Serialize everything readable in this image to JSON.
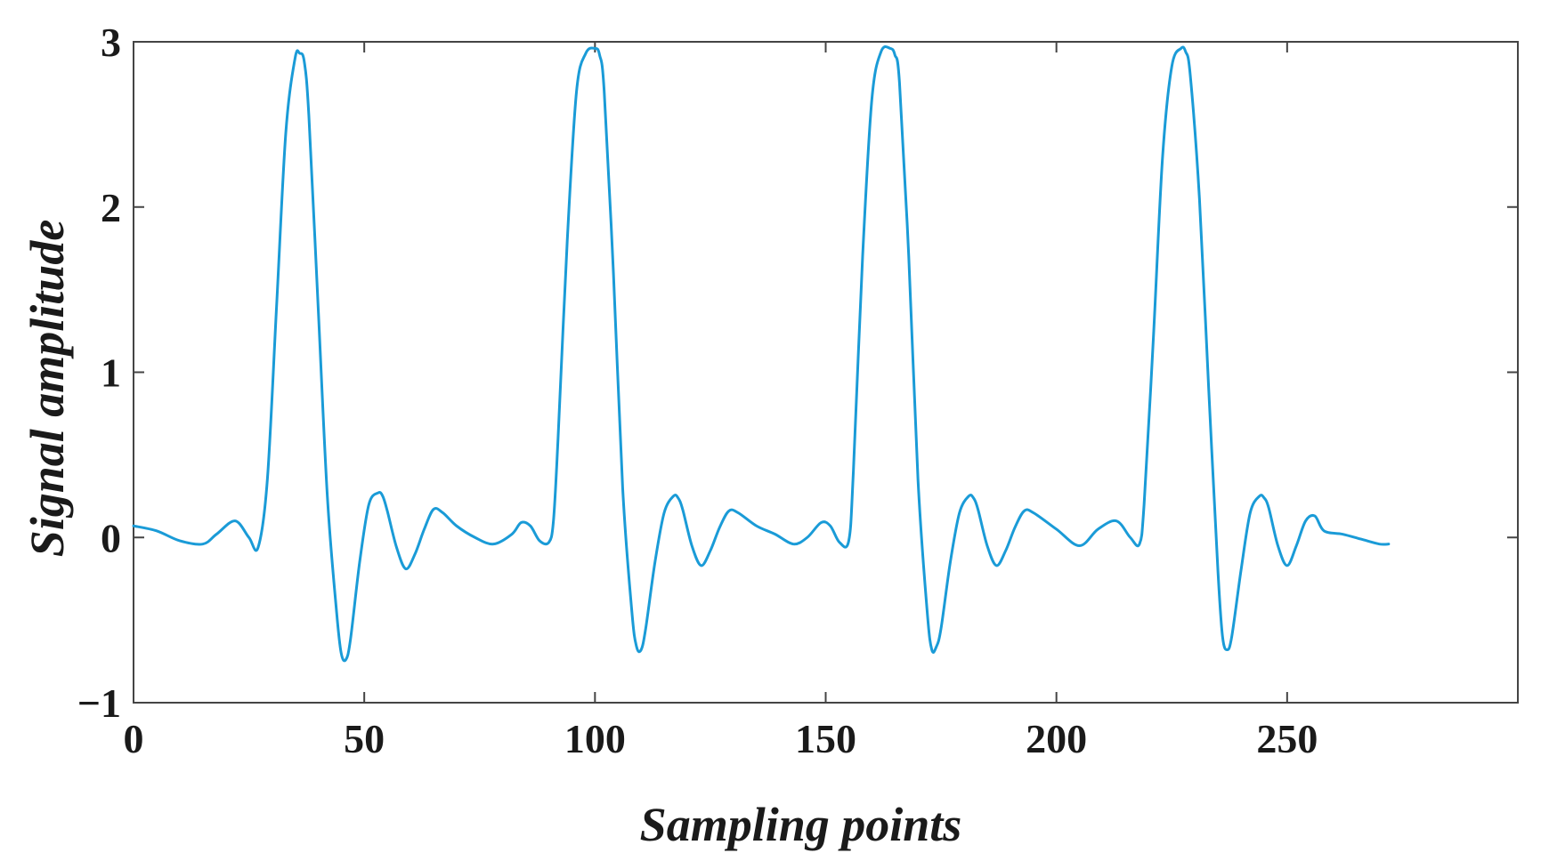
{
  "chart_data": {
    "type": "line",
    "title": "",
    "xlabel": "Sampling points",
    "ylabel": "Signal amplitude",
    "xlim": [
      0,
      300
    ],
    "ylim": [
      -1,
      3
    ],
    "xticks": [
      0,
      50,
      100,
      150,
      200,
      250
    ],
    "yticks": [
      -1,
      0,
      1,
      2,
      3
    ],
    "xtick_labels": [
      "0",
      "50",
      "100",
      "150",
      "200",
      "250"
    ],
    "ytick_labels": [
      "−1",
      "0",
      "1",
      "2",
      "3"
    ],
    "grid": false,
    "line_color": "#1a9bd7",
    "series": [
      {
        "x": [
          0,
          5,
          10,
          15,
          18,
          22,
          25,
          27,
          29,
          31,
          33,
          35,
          36,
          37,
          38,
          40,
          42,
          44,
          45,
          46,
          47,
          49,
          51,
          53,
          54,
          55,
          57,
          59,
          61,
          63,
          65,
          67,
          70,
          74,
          78,
          82,
          84,
          86,
          88,
          90,
          91,
          92,
          94,
          96,
          98,
          100,
          101,
          102,
          104,
          106,
          108,
          109,
          110,
          111,
          113,
          115,
          117,
          118,
          119,
          121,
          123,
          125,
          127,
          129,
          131,
          135,
          139,
          143,
          146,
          149,
          151,
          153,
          155,
          156,
          158,
          160,
          162,
          164,
          165,
          166,
          168,
          170,
          172,
          173,
          174,
          175,
          177,
          179,
          181,
          182,
          183,
          185,
          187,
          189,
          191,
          193,
          195,
          200,
          205,
          209,
          213,
          216,
          218,
          219,
          221,
          223,
          225,
          227,
          228,
          229,
          231,
          233,
          235,
          236,
          237,
          238,
          240,
          242,
          244,
          245,
          246,
          248,
          250,
          252,
          254,
          256,
          258,
          262,
          266,
          270,
          272
        ],
        "y": [
          0.07,
          0.04,
          -0.02,
          -0.04,
          0.02,
          0.1,
          0.0,
          -0.06,
          0.35,
          1.4,
          2.45,
          2.9,
          2.93,
          2.88,
          2.55,
          1.4,
          0.25,
          -0.45,
          -0.7,
          -0.74,
          -0.62,
          -0.15,
          0.2,
          0.27,
          0.25,
          0.16,
          -0.06,
          -0.19,
          -0.1,
          0.05,
          0.17,
          0.15,
          0.07,
          0.0,
          -0.04,
          0.02,
          0.09,
          0.07,
          -0.02,
          -0.03,
          0.1,
          0.6,
          1.8,
          2.7,
          2.93,
          2.96,
          2.92,
          2.7,
          1.6,
          0.3,
          -0.45,
          -0.66,
          -0.68,
          -0.55,
          -0.15,
          0.15,
          0.25,
          0.24,
          0.17,
          -0.05,
          -0.17,
          -0.08,
          0.06,
          0.16,
          0.15,
          0.07,
          0.02,
          -0.04,
          0.0,
          0.09,
          0.07,
          -0.03,
          -0.02,
          0.4,
          1.7,
          2.65,
          2.94,
          2.96,
          2.92,
          2.75,
          1.7,
          0.35,
          -0.45,
          -0.68,
          -0.66,
          -0.55,
          -0.15,
          0.15,
          0.25,
          0.24,
          0.17,
          -0.05,
          -0.17,
          -0.08,
          0.06,
          0.16,
          0.15,
          0.05,
          -0.05,
          0.05,
          0.1,
          0.0,
          -0.04,
          0.2,
          1.2,
          2.3,
          2.85,
          2.96,
          2.94,
          2.8,
          2.05,
          0.9,
          -0.2,
          -0.6,
          -0.68,
          -0.6,
          -0.2,
          0.15,
          0.25,
          0.24,
          0.18,
          -0.05,
          -0.17,
          -0.05,
          0.1,
          0.13,
          0.04,
          0.02,
          -0.01,
          -0.04,
          -0.04
        ]
      }
    ]
  }
}
